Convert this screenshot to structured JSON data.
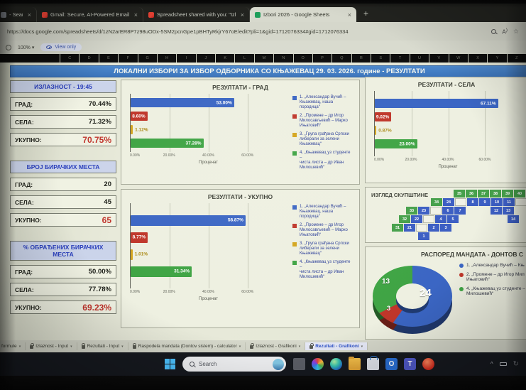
{
  "browser": {
    "tabs": [
      {
        "title": "- Search",
        "favicon": "search-page",
        "close": "×",
        "active": false
      },
      {
        "title": "Gmail: Secure, AI-Powered Email |",
        "favicon": "gmail",
        "close": "×",
        "active": false
      },
      {
        "title": "Spreadsheet shared with you: \"Izl",
        "favicon": "gmail",
        "close": "×",
        "active": false
      },
      {
        "title": "Izbori 2026 - Google Sheets",
        "favicon": "sheets",
        "close": "×",
        "active": true
      }
    ],
    "new_tab_label": "+",
    "url": "https://docs.google.com/spreadsheets/d/1zN2arER8P7z98uODx-5SM2pcnGpe1pBHTyRkjrY67oE/edit?pli=1&gid=1712076334#gid=1712076334"
  },
  "toolbar": {
    "zoom_level": "100%",
    "zoom_arrow": "▾",
    "view_only_label": "View only"
  },
  "grid_columns": [
    "C",
    "D",
    "E",
    "F",
    "G",
    "H",
    "I",
    "J",
    "K",
    "L",
    "M",
    "N",
    "O",
    "P",
    "Q",
    "R",
    "S",
    "T",
    "U",
    "V",
    "W",
    "X",
    "Y",
    "Z"
  ],
  "sheet": {
    "main_title": "ЛОКАЛНИ ИЗБОРИ ЗА ИЗБОР ОДБОРНИКА СО КЊАЖЕВАЦ  29. 03. 2026. године - РЕЗУЛТАТИ",
    "stat_panels": [
      {
        "header": "ИЗЛАЗНОСТ - 19:45",
        "rows": [
          {
            "label": "ГРАД:",
            "value": "70.44%",
            "highlight": false
          },
          {
            "label": "СЕЛА:",
            "value": "71.32%",
            "highlight": false
          },
          {
            "label": "УКУПНО:",
            "value": "70.75%",
            "highlight": true
          }
        ]
      },
      {
        "header": "БРОЈ БИРАЧКИХ МЕСТА",
        "rows": [
          {
            "label": "ГРАД:",
            "value": "20",
            "highlight": false
          },
          {
            "label": "СЕЛА:",
            "value": "45",
            "highlight": false
          },
          {
            "label": "УКУПНО:",
            "value": "65",
            "highlight": true
          }
        ]
      },
      {
        "header": "% ОБРАЂЕНИХ БИРАЧКИХ МЕСТА",
        "rows": [
          {
            "label": "ГРАД:",
            "value": "50.00%",
            "highlight": false
          },
          {
            "label": "СЕЛА:",
            "value": "77.78%",
            "highlight": false
          },
          {
            "label": "УКУПНО:",
            "value": "69.23%",
            "highlight": true
          }
        ]
      }
    ]
  },
  "chart_data": [
    {
      "type": "bar",
      "title": "РЕЗУЛТАТИ - ГРАД",
      "orientation": "horizontal",
      "categories": [
        "Александар Вучић – Књажевац, наша породица",
        "Промене – др Игор Милосављевић – Марко Ињатовић",
        "Група грађана Српски либерали за зелени Књажевац",
        "Књажевац уз студенте – чиста листа – др Иван Милошевић"
      ],
      "values": [
        53.0,
        8.6,
        1.12,
        37.28
      ],
      "value_labels": [
        "53.00%",
        "8.60%",
        "1.12%",
        "37.28%"
      ],
      "colors": [
        "#3b66c4",
        "#bf362a",
        "#d4a51e",
        "#3fa444"
      ],
      "xticks": [
        "0.00%",
        "20.00%",
        "40.00%",
        "60.00%"
      ],
      "xlim": [
        0,
        80
      ],
      "xlabel": "Проценат",
      "legend": true
    },
    {
      "type": "bar",
      "title": "РЕЗУЛТАТИ - СЕЛА",
      "orientation": "horizontal",
      "categories": [
        "Александар Вучић – Књажевац, наша породица",
        "Промене – др Игор Милосављевић – Марко Ињатовић",
        "Група грађана Српски либерали за зелени Књажевац",
        "Књажевац уз студенте – чиста листа – др Иван Милошевић"
      ],
      "values": [
        67.11,
        9.02,
        0.87,
        23.0
      ],
      "value_labels": [
        "67.11%",
        "9.02%",
        "0.87%",
        "23.00%"
      ],
      "colors": [
        "#3b66c4",
        "#bf362a",
        "#d4a51e",
        "#3fa444"
      ],
      "xticks": [
        "0.00%",
        "20.00%",
        "40.00%",
        "60.00%"
      ],
      "xlim": [
        0,
        80
      ],
      "xlabel": "Проценат",
      "legend": false
    },
    {
      "type": "bar",
      "title": "РЕЗУЛТАТИ - УКУПНО",
      "orientation": "horizontal",
      "categories": [
        "Александар Вучић – Књажевац, наша породица",
        "Промене – др Игор Милосављевић – Марко Ињатовић",
        "Група грађана Српски либерали за зелени Књажевац",
        "Књажевац уз студенте – чиста листа – др Иван Милошевић"
      ],
      "values": [
        58.87,
        8.77,
        1.01,
        31.34
      ],
      "value_labels": [
        "58.87%",
        "8.77%",
        "1.01%",
        "31.34%"
      ],
      "colors": [
        "#3b66c4",
        "#bf362a",
        "#d4a51e",
        "#3fa444"
      ],
      "xticks": [
        "0.00%",
        "20.00%",
        "40.00%",
        "60.00%"
      ],
      "xlim": [
        0,
        80
      ],
      "xlabel": "Проценат",
      "legend": true
    },
    {
      "type": "pie",
      "title": "РАСПОРЕД МАНДАТА - ДОНТОВ С",
      "labels": [
        "Александар Вучић",
        "Промене",
        "Књажевац уз студенте"
      ],
      "values": [
        24,
        3,
        13
      ],
      "value_labels": [
        "24",
        "3",
        "13"
      ],
      "colors": [
        "#3b66c4",
        "#bf362a",
        "#3fa444"
      ],
      "total": 40
    }
  ],
  "bar_legend_items": [
    {
      "color": "#3b66c4",
      "lines": [
        "1. „Александар Вучић –",
        "Књажевац, наша породица“"
      ]
    },
    {
      "color": "#bf362a",
      "lines": [
        "2. „Промене – др Игор",
        "Милосављевић – Марко",
        "Ињатовић“"
      ]
    },
    {
      "color": "#d4a51e",
      "lines": [
        "3. „Група грађана Српски",
        "либерали за зелени",
        "Књажевац“"
      ]
    },
    {
      "color": "#3fa444",
      "lines": [
        "4. „Књажевац уз студенте –",
        "чиста листа – др Иван",
        "Милошевић“"
      ]
    }
  ],
  "assembly": {
    "title": "ИЗГЛЕД СКУПШТИНЕ",
    "rows": [
      {
        "offset": 124,
        "seats": [
          [
            "35",
            "g"
          ],
          [
            "36",
            "g"
          ],
          [
            "37",
            "g"
          ],
          [
            "38",
            "g"
          ],
          [
            "39",
            "g"
          ],
          [
            "40",
            "g"
          ]
        ]
      },
      {
        "offset": 92,
        "seats": [
          [
            "34",
            "g"
          ],
          [
            "24",
            "b"
          ],
          [
            "",
            "w"
          ],
          [
            "8",
            "b"
          ],
          [
            "9",
            "b"
          ],
          [
            "10",
            "b"
          ],
          [
            "11",
            "b"
          ],
          [
            "",
            "w"
          ]
        ]
      },
      {
        "offset": 57,
        "seats": [
          [
            "33",
            "g"
          ],
          [
            "23",
            "b"
          ],
          [
            "",
            "w"
          ],
          [
            "6",
            "b"
          ],
          [
            "7",
            "b"
          ],
          [
            "",
            "e"
          ],
          [
            "",
            "e"
          ],
          [
            "12",
            "b"
          ],
          [
            "13",
            "b"
          ]
        ]
      },
      {
        "offset": 47,
        "seats": [
          [
            "32",
            "g"
          ],
          [
            "22",
            "b"
          ],
          [
            "",
            "w"
          ],
          [
            "4",
            "b"
          ],
          [
            "5",
            "b"
          ],
          [
            "",
            "e"
          ],
          [
            "",
            "e"
          ],
          [
            "",
            "e"
          ],
          [
            "",
            "e"
          ],
          [
            "14",
            "b"
          ]
        ]
      },
      {
        "offset": 37,
        "seats": [
          [
            "31",
            "g"
          ],
          [
            "21",
            "b"
          ],
          [
            "",
            "w"
          ],
          [
            "2",
            "b"
          ],
          [
            "3",
            "b"
          ]
        ]
      },
      {
        "offset": 74,
        "seats": [
          [
            "1",
            "b"
          ]
        ]
      }
    ]
  },
  "mandates": {
    "title": "РАСПОРЕД МАНДАТА - ДОНТОВ С",
    "legend": [
      {
        "color": "#3b66c4",
        "lines": [
          "1. „Александар Вучић – Књ"
        ]
      },
      {
        "color": "#bf362a",
        "lines": [
          "2. „Промене – др Игор Мил",
          "Ињатовић“"
        ]
      },
      {
        "color": "#3fa444",
        "lines": [
          "4. „Књажевац уз студенте –",
          "Милошевић“"
        ]
      }
    ]
  },
  "sheet_tabs": [
    {
      "label": "formule",
      "locked": false,
      "active": false
    },
    {
      "label": "Izlaznost - Input",
      "locked": true,
      "active": false
    },
    {
      "label": "Rezultati - Input",
      "locked": true,
      "active": false
    },
    {
      "label": "Raspodela mandata (Dontov sistem) - calculator",
      "locked": true,
      "active": false
    },
    {
      "label": "Izlaznost - Grafikoni",
      "locked": true,
      "active": false
    },
    {
      "label": "Rezultati - Grafikoni",
      "locked": true,
      "active": true
    }
  ],
  "taskbar": {
    "search_label": "Search",
    "app_icons": [
      "app-window",
      "photos",
      "edge",
      "file-explorer",
      "store",
      "outlook",
      "teams",
      "red-app"
    ],
    "tray_chevron": "^"
  }
}
